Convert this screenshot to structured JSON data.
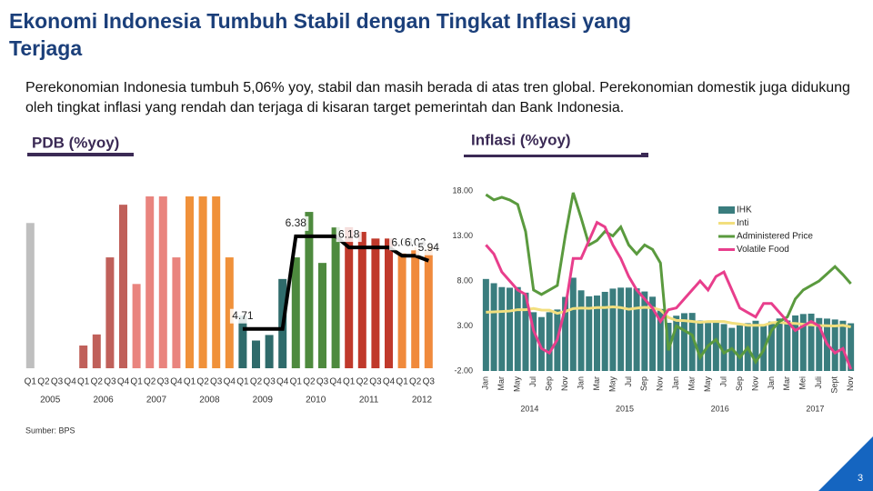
{
  "header": {
    "title": "Ekonomi Indonesia Tumbuh Stabil dengan Tingkat Inflasi yang Terjaga",
    "text": "Perekonomian Indonesia tumbuh 5,06% yoy, stabil dan masih berada di atas tren global. Perekonomian domestik juga didukung oleh tingkat inflasi yang rendah dan terjaga di kisaran target pemerintah dan Bank Indonesia.",
    "source": "Sumber: BPS",
    "page": "3"
  },
  "chart_data": [
    {
      "type": "bar",
      "title": "PDB (%yoy)",
      "categories": [
        "Q1",
        "Q2",
        "Q3",
        "Q4",
        "Q1",
        "Q2",
        "Q3",
        "Q4",
        "Q1",
        "Q2",
        "Q3",
        "Q4",
        "Q1",
        "Q2",
        "Q3",
        "Q4",
        "Q1",
        "Q2",
        "Q3",
        "Q4",
        "Q1",
        "Q2",
        "Q3",
        "Q4",
        "Q1",
        "Q2",
        "Q3",
        "Q4",
        "Q1",
        "Q2",
        "Q3"
      ],
      "years": [
        "2005",
        "2006",
        "2007",
        "2008",
        "2009",
        "2010",
        "2011",
        "2012"
      ],
      "colors": [
        "#bfbfbf",
        "#c0605a",
        "#e9847e",
        "#f0913a",
        "#2f6b6b",
        "#4e8a3e",
        "#c0392b",
        "#f08a3c"
      ],
      "values": [
        6.62,
        null,
        null,
        null,
        4.41,
        4.61,
        6.0,
        6.95,
        5.52,
        7.1,
        7.1,
        6.0,
        7.1,
        7.1,
        7.1,
        6.0,
        4.95,
        4.5,
        4.6,
        5.61,
        6.0,
        6.82,
        5.9,
        6.54,
        6.54,
        6.46,
        6.34,
        6.34,
        6.07,
        6.18,
        6.21
      ],
      "ylim": [
        4,
        7.1
      ],
      "line": {
        "color": "#000000",
        "values": [
          null,
          null,
          null,
          null,
          null,
          null,
          null,
          null,
          null,
          null,
          null,
          null,
          null,
          null,
          null,
          null,
          4.71,
          4.71,
          4.71,
          4.71,
          6.38,
          6.38,
          6.38,
          6.38,
          6.18,
          6.18,
          6.18,
          6.18,
          6.03,
          6.03,
          5.94
        ],
        "value_labels": [
          null,
          null,
          null,
          null,
          null,
          null,
          null,
          null,
          null,
          null,
          null,
          null,
          null,
          null,
          null,
          null,
          "4.71",
          null,
          null,
          null,
          "6.38",
          null,
          null,
          null,
          "6.18",
          null,
          null,
          null,
          "6.03",
          "6.03",
          "5.94"
        ]
      }
    },
    {
      "type": "bar_line",
      "title": "Inflasi (%yoy)",
      "categories": [
        "Jan",
        null,
        "Mar",
        null,
        "May",
        null,
        "Jul",
        null,
        "Sep",
        null,
        "Nov",
        null,
        "Jan",
        null,
        "Mar",
        null,
        "May",
        null,
        "Jul",
        null,
        "Sep",
        null,
        "Nov",
        null,
        "Jan",
        null,
        "Mar",
        null,
        "May",
        null,
        "Jul",
        null,
        "Sep",
        null,
        "Nov",
        null,
        "Jan",
        null,
        "Mar",
        null,
        "Mei",
        null,
        "Juli",
        null,
        "Sept",
        null,
        "Nov"
      ],
      "years": [
        "2014",
        "2015",
        "2016",
        "2017"
      ],
      "ylim": [
        -2,
        18
      ],
      "yticks": [
        {
          "value": 18,
          "label": "18.00"
        },
        {
          "value": 13,
          "label": "13.00"
        },
        {
          "value": 8,
          "label": "8.00"
        },
        {
          "value": 3,
          "label": "3.00"
        },
        {
          "value": -2,
          "label": "-2.00"
        }
      ],
      "legend": "top-right",
      "series": [
        {
          "name": "IHK",
          "kind": "bar",
          "color": "#3a7d7e",
          "values": [
            8.22,
            7.75,
            7.32,
            7.25,
            7.32,
            6.7,
            4.53,
            3.99,
            4.53,
            4.83,
            6.23,
            8.36,
            6.96,
            6.29,
            6.38,
            6.79,
            7.15,
            7.26,
            7.26,
            7.18,
            6.83,
            6.25,
            4.89,
            3.35,
            4.14,
            4.42,
            4.45,
            3.6,
            3.33,
            3.45,
            3.21,
            2.79,
            3.07,
            3.31,
            3.58,
            3.02,
            3.49,
            3.83,
            3.61,
            4.17,
            4.33,
            4.37,
            3.88,
            3.82,
            3.72,
            3.58,
            3.3
          ]
        },
        {
          "name": "Inti",
          "kind": "line",
          "color": "#f2df7e",
          "values": [
            4.53,
            4.57,
            4.61,
            4.66,
            4.81,
            4.81,
            4.94,
            4.77,
            4.75,
            4.41,
            4.61,
            4.93,
            4.99,
            4.96,
            5.04,
            5.04,
            5.12,
            5.04,
            4.86,
            4.98,
            5.07,
            5.02,
            4.77,
            3.95,
            3.62,
            3.59,
            3.5,
            3.41,
            3.49,
            3.49,
            3.49,
            3.32,
            3.21,
            3.08,
            3.07,
            3.07,
            3.35,
            3.41,
            3.3,
            3.28,
            3.19,
            3.13,
            3.05,
            3.02,
            3.0,
            3.07,
            2.89
          ]
        },
        {
          "name": "Administered Price",
          "kind": "line",
          "color": "#5a9a3e",
          "values": [
            17.6,
            17.0,
            17.3,
            17.0,
            16.5,
            13.5,
            7.0,
            6.5,
            7.0,
            7.5,
            13.0,
            17.8,
            15.0,
            12.0,
            12.5,
            13.5,
            13.0,
            14.0,
            12.0,
            11.0,
            12.0,
            11.5,
            10.0,
            0.3,
            3.0,
            2.5,
            2.0,
            -0.5,
            0.8,
            1.5,
            0.0,
            0.5,
            -0.5,
            0.6,
            -1.0,
            0.3,
            2.5,
            3.5,
            4.0,
            6.0,
            7.0,
            7.5,
            8.0,
            8.8,
            9.6,
            8.7,
            7.7
          ]
        },
        {
          "name": "Volatile Food",
          "kind": "line",
          "color": "#e83e8c",
          "values": [
            12.0,
            11.0,
            9.0,
            8.0,
            7.0,
            6.5,
            2.5,
            0.5,
            0.0,
            1.5,
            5.0,
            10.5,
            10.5,
            12.5,
            14.5,
            14.0,
            12.0,
            10.5,
            8.5,
            7.0,
            6.0,
            5.0,
            3.5,
            4.8,
            5.0,
            6.0,
            7.0,
            8.0,
            7.0,
            8.5,
            9.0,
            7.0,
            5.0,
            4.5,
            4.0,
            5.5,
            5.5,
            4.5,
            3.5,
            2.5,
            3.0,
            3.5,
            3.0,
            1.0,
            0.0,
            0.5,
            -1.8
          ]
        }
      ]
    }
  ]
}
